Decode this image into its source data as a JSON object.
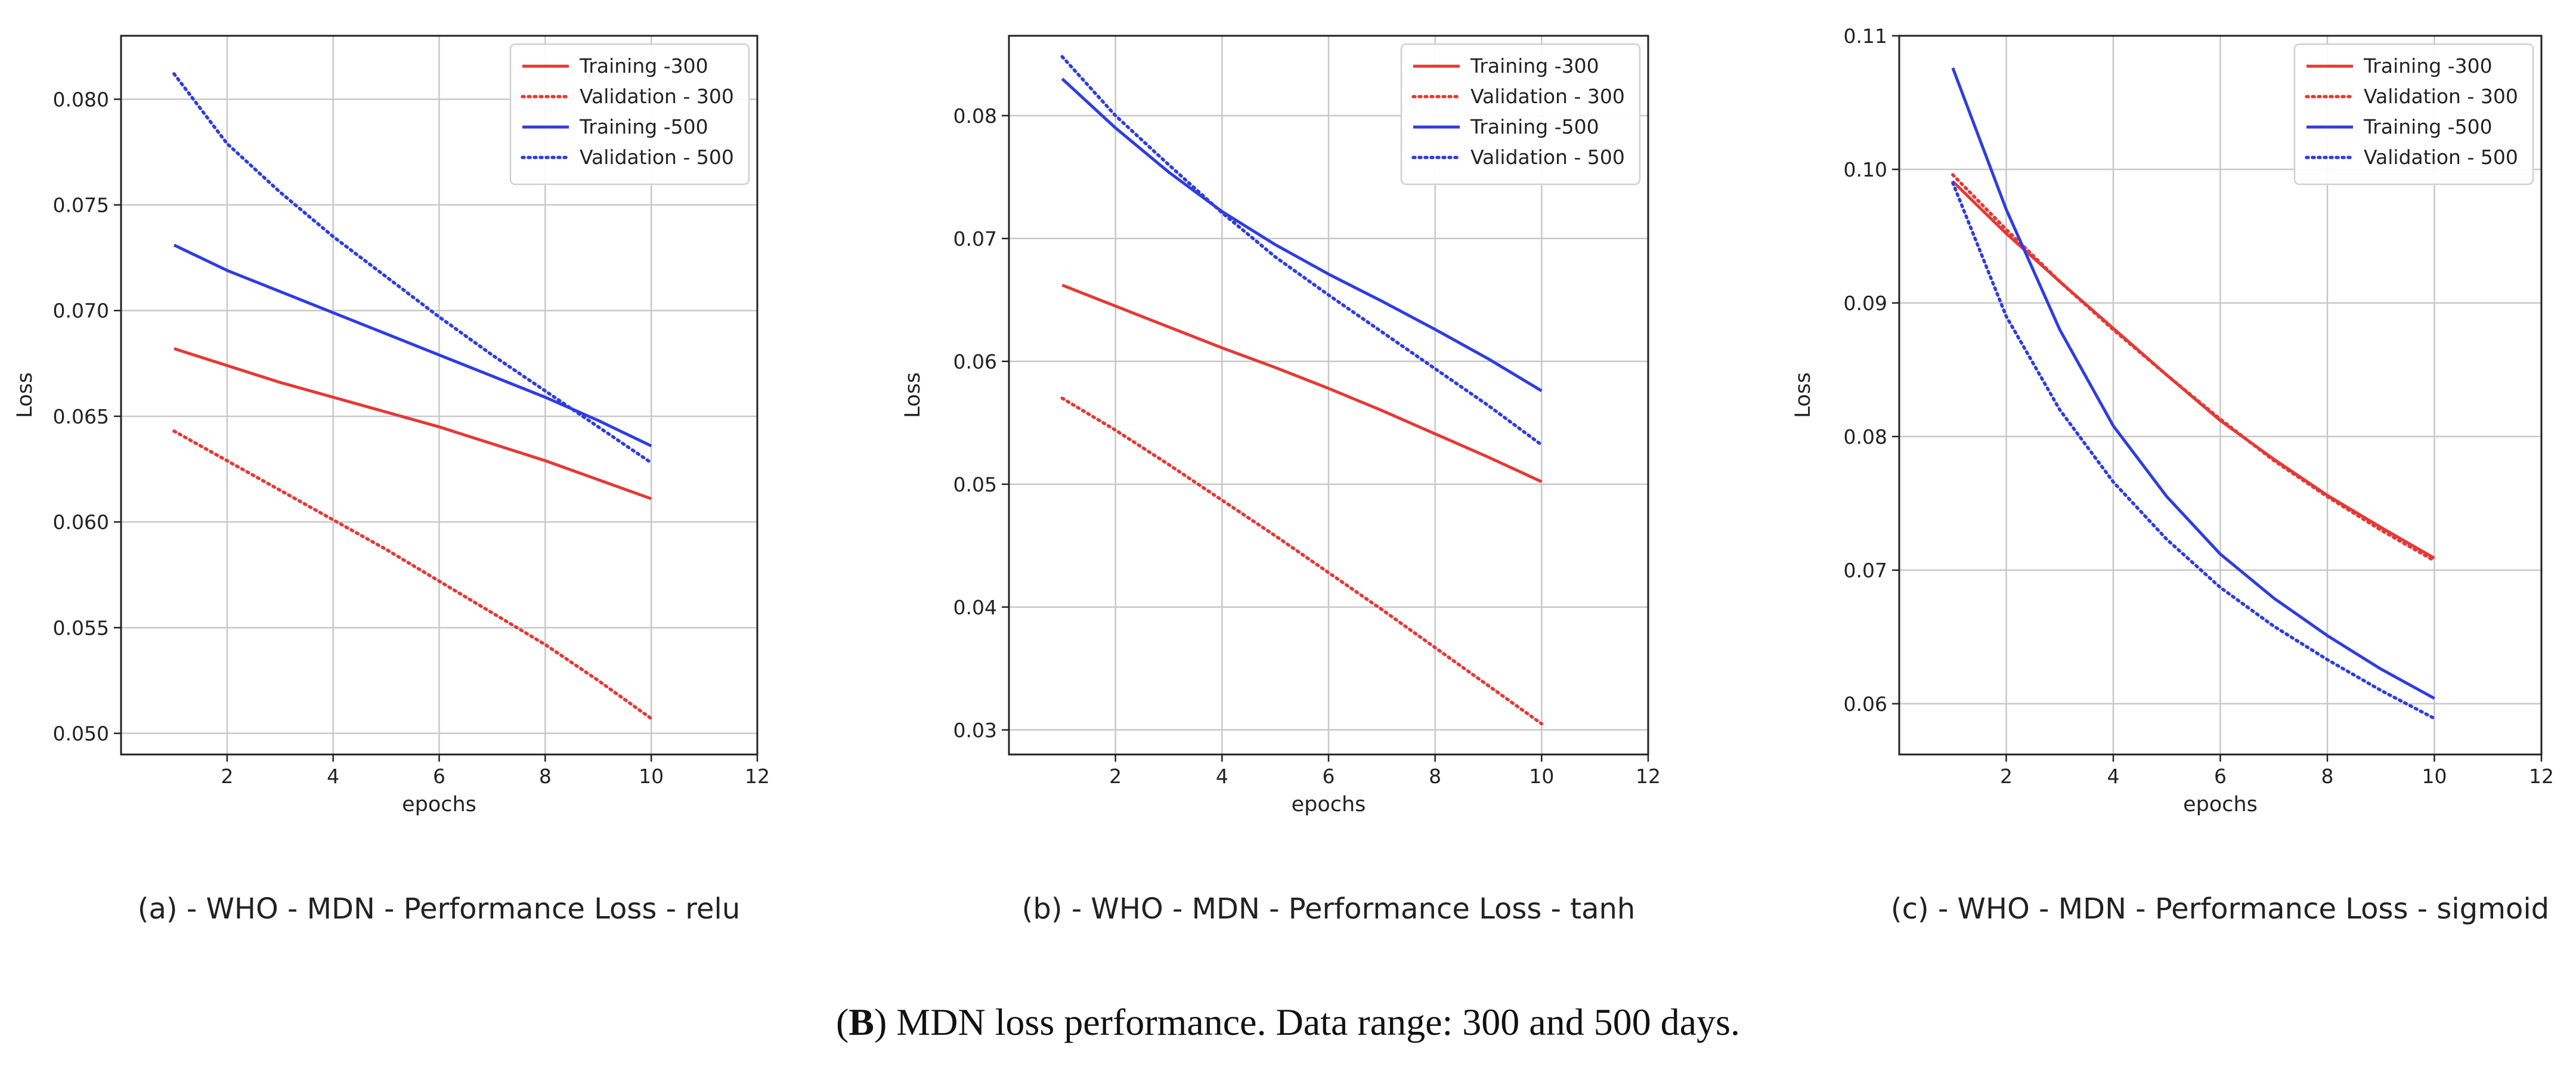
{
  "figure_caption": {
    "letter": "B",
    "text": " MDN loss performance. Data range: 300 and 500 days."
  },
  "chart_data": [
    {
      "type": "line",
      "caption": "(a)  - WHO - MDN - Performance Loss - relu",
      "xlabel": "epochs",
      "ylabel": "Loss",
      "xlim": [
        0,
        12
      ],
      "ylim": [
        0.049,
        0.083
      ],
      "xticks": [
        2,
        4,
        6,
        8,
        10,
        12
      ],
      "xtick_labels": [
        "2",
        "4",
        "6",
        "8",
        "10",
        "12"
      ],
      "yticks": [
        0.05,
        0.055,
        0.06,
        0.065,
        0.07,
        0.075,
        0.08
      ],
      "ytick_labels": [
        "0.050",
        "0.055",
        "0.060",
        "0.065",
        "0.070",
        "0.075",
        "0.080"
      ],
      "grid": true,
      "legend_position": "top-right",
      "x": [
        1,
        2,
        3,
        4,
        5,
        6,
        7,
        8,
        9,
        10
      ],
      "series": [
        {
          "name": "Training -300",
          "color": "#e53935",
          "style": "solid",
          "values": [
            0.0682,
            0.0674,
            0.0666,
            0.0659,
            0.0652,
            0.0645,
            0.0637,
            0.0629,
            0.062,
            0.0611
          ]
        },
        {
          "name": "Validation - 300",
          "color": "#e53935",
          "style": "dotted",
          "values": [
            0.0643,
            0.0629,
            0.0615,
            0.0601,
            0.0587,
            0.0572,
            0.0557,
            0.0542,
            0.0525,
            0.0507
          ]
        },
        {
          "name": "Training -500",
          "color": "#2e3de0",
          "style": "solid",
          "values": [
            0.0731,
            0.0719,
            0.0709,
            0.0699,
            0.0689,
            0.0679,
            0.0669,
            0.0659,
            0.0648,
            0.0636
          ]
        },
        {
          "name": "Validation - 500",
          "color": "#2e3de0",
          "style": "dotted",
          "values": [
            0.0812,
            0.0779,
            0.0756,
            0.0735,
            0.0716,
            0.0697,
            0.0679,
            0.0662,
            0.0645,
            0.0628
          ]
        }
      ]
    },
    {
      "type": "line",
      "caption": "(b)  - WHO - MDN - Performance Loss - tanh",
      "xlabel": "epochs",
      "ylabel": "Loss",
      "xlim": [
        0,
        12
      ],
      "ylim": [
        0.028,
        0.0865
      ],
      "xticks": [
        2,
        4,
        6,
        8,
        10,
        12
      ],
      "xtick_labels": [
        "2",
        "4",
        "6",
        "8",
        "10",
        "12"
      ],
      "yticks": [
        0.03,
        0.04,
        0.05,
        0.06,
        0.07,
        0.08
      ],
      "ytick_labels": [
        "0.03",
        "0.04",
        "0.05",
        "0.06",
        "0.07",
        "0.08"
      ],
      "grid": true,
      "legend_position": "top-right",
      "x": [
        1,
        2,
        3,
        4,
        5,
        6,
        7,
        8,
        9,
        10
      ],
      "series": [
        {
          "name": "Training -300",
          "color": "#e53935",
          "style": "solid",
          "values": [
            0.0662,
            0.0645,
            0.0628,
            0.0611,
            0.0595,
            0.0578,
            0.056,
            0.0541,
            0.0522,
            0.0502
          ]
        },
        {
          "name": "Validation - 300",
          "color": "#e53935",
          "style": "dotted",
          "values": [
            0.057,
            0.0544,
            0.0516,
            0.0487,
            0.0458,
            0.0428,
            0.0398,
            0.0367,
            0.0336,
            0.0305
          ]
        },
        {
          "name": "Training -500",
          "color": "#2e3de0",
          "style": "solid",
          "values": [
            0.083,
            0.079,
            0.0754,
            0.0722,
            0.0695,
            0.0671,
            0.0649,
            0.0626,
            0.0602,
            0.0576
          ]
        },
        {
          "name": "Validation - 500",
          "color": "#2e3de0",
          "style": "dotted",
          "values": [
            0.0848,
            0.08,
            0.076,
            0.0721,
            0.0685,
            0.0654,
            0.0624,
            0.0594,
            0.0564,
            0.0532
          ]
        }
      ]
    },
    {
      "type": "line",
      "caption": "(c)  - WHO - MDN - Performance Loss - sigmoid",
      "xlabel": "epochs",
      "ylabel": "Loss",
      "xlim": [
        0,
        12
      ],
      "ylim": [
        0.0562,
        0.11
      ],
      "xticks": [
        2,
        4,
        6,
        8,
        10,
        12
      ],
      "xtick_labels": [
        "2",
        "4",
        "6",
        "8",
        "10",
        "12"
      ],
      "yticks": [
        0.06,
        0.07,
        0.08,
        0.09,
        0.1,
        0.11
      ],
      "ytick_labels": [
        "0.06",
        "0.07",
        "0.08",
        "0.09",
        "0.10",
        "0.11"
      ],
      "grid": true,
      "legend_position": "top-right",
      "x": [
        1,
        2,
        3,
        4,
        5,
        6,
        7,
        8,
        9,
        10
      ],
      "series": [
        {
          "name": "Training -300",
          "color": "#e53935",
          "style": "solid",
          "values": [
            0.0991,
            0.0952,
            0.0916,
            0.0881,
            0.0846,
            0.0812,
            0.0783,
            0.0756,
            0.0732,
            0.0709
          ]
        },
        {
          "name": "Validation - 300",
          "color": "#e53935",
          "style": "dotted",
          "values": [
            0.0996,
            0.0955,
            0.0916,
            0.088,
            0.0846,
            0.0813,
            0.0782,
            0.0755,
            0.073,
            0.0707
          ]
        },
        {
          "name": "Training -500",
          "color": "#2e3de0",
          "style": "solid",
          "values": [
            0.1076,
            0.097,
            0.088,
            0.0808,
            0.0755,
            0.0712,
            0.0679,
            0.0651,
            0.0626,
            0.0604
          ]
        },
        {
          "name": "Validation - 500",
          "color": "#2e3de0",
          "style": "dotted",
          "values": [
            0.099,
            0.089,
            0.082,
            0.0766,
            0.0723,
            0.0687,
            0.0658,
            0.0633,
            0.061,
            0.0589
          ]
        }
      ]
    }
  ]
}
